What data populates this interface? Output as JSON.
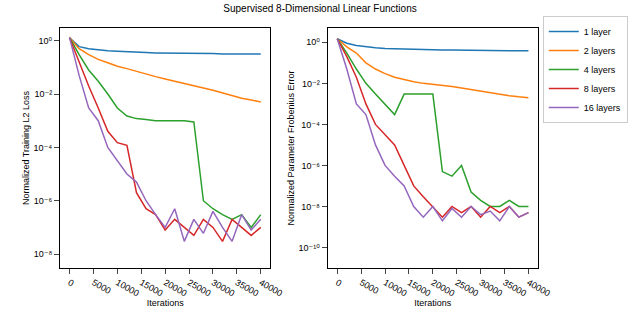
{
  "chart_data": [
    {
      "type": "line",
      "title": "Supervised 8-Dimensional Linear Functions",
      "x_label": "Iterations",
      "y_label": "Normalized Training L2 Loss",
      "log": "y",
      "grid": false,
      "x": [
        0,
        2000,
        4000,
        6000,
        8000,
        10000,
        12000,
        14000,
        16000,
        18000,
        20000,
        22000,
        24000,
        26000,
        28000,
        30000,
        32000,
        34000,
        36000,
        38000,
        40000
      ],
      "xlim": [
        -2000,
        42000
      ],
      "xticks": [
        0,
        5000,
        10000,
        15000,
        20000,
        25000,
        30000,
        35000,
        40000
      ],
      "ylim": [
        3e-09,
        3
      ],
      "yticks": [
        {
          "value": 1,
          "label": "10⁰"
        },
        {
          "value": 0.01,
          "label": "10⁻²"
        },
        {
          "value": 0.0001,
          "label": "10⁻⁴"
        },
        {
          "value": 1e-06,
          "label": "10⁻⁶"
        },
        {
          "value": 1e-08,
          "label": "10⁻⁸"
        }
      ],
      "series": [
        {
          "name": "1 layer",
          "color": "#1f77b4",
          "values": [
            1.3,
            0.6,
            0.5,
            0.45,
            0.42,
            0.4,
            0.38,
            0.37,
            0.36,
            0.35,
            0.35,
            0.34,
            0.34,
            0.33,
            0.33,
            0.33,
            0.32,
            0.32,
            0.32,
            0.32,
            0.32
          ]
        },
        {
          "name": "2 layers",
          "color": "#ff7f0e",
          "values": [
            1.3,
            0.5,
            0.3,
            0.2,
            0.15,
            0.11,
            0.09,
            0.07,
            0.055,
            0.045,
            0.037,
            0.03,
            0.025,
            0.021,
            0.017,
            0.014,
            0.011,
            0.009,
            0.007,
            0.006,
            0.005
          ]
        },
        {
          "name": "4 layers",
          "color": "#2ca02c",
          "values": [
            1.3,
            0.3,
            0.08,
            0.03,
            0.01,
            0.003,
            0.0015,
            0.0012,
            0.0011,
            0.001,
            0.001,
            0.001,
            0.001,
            0.0009,
            1e-06,
            5e-07,
            3e-07,
            2e-07,
            3e-07,
            1e-07,
            3e-07
          ]
        },
        {
          "name": "8 layers",
          "color": "#d62728",
          "values": [
            1.3,
            0.15,
            0.02,
            0.003,
            0.0004,
            0.00015,
            0.00012,
            2e-06,
            5e-07,
            3e-07,
            8e-08,
            2e-07,
            1e-07,
            5e-08,
            2e-07,
            1e-07,
            3e-08,
            2e-07,
            1e-07,
            5e-08,
            1e-07
          ]
        },
        {
          "name": "16 layers",
          "color": "#9467bd",
          "values": [
            1.3,
            0.05,
            0.003,
            0.001,
            0.0001,
            3e-05,
            1e-05,
            5e-06,
            1e-06,
            3e-07,
            1e-07,
            5e-07,
            3e-08,
            2e-07,
            6e-08,
            4e-07,
            1e-07,
            3e-08,
            3e-07,
            8e-08,
            2e-07
          ]
        }
      ]
    },
    {
      "type": "line",
      "x_label": "Iterations",
      "y_label": "Normalized Parameter Frobenius Error",
      "log": "y",
      "grid": false,
      "legend": "upper right",
      "x": [
        0,
        2000,
        4000,
        6000,
        8000,
        10000,
        12000,
        14000,
        16000,
        18000,
        20000,
        22000,
        24000,
        26000,
        28000,
        30000,
        32000,
        34000,
        36000,
        38000,
        40000
      ],
      "xlim": [
        -2000,
        42000
      ],
      "xticks": [
        0,
        5000,
        10000,
        15000,
        20000,
        25000,
        30000,
        35000,
        40000
      ],
      "ylim": [
        1e-11,
        5
      ],
      "yticks": [
        {
          "value": 1,
          "label": "10⁰"
        },
        {
          "value": 0.01,
          "label": "10⁻²"
        },
        {
          "value": 0.0001,
          "label": "10⁻⁴"
        },
        {
          "value": 1e-06,
          "label": "10⁻⁶"
        },
        {
          "value": 1e-08,
          "label": "10⁻⁸"
        },
        {
          "value": 1e-10,
          "label": "10⁻¹⁰"
        }
      ],
      "series": [
        {
          "name": "1 layer",
          "color": "#1f77b4",
          "values": [
            1.5,
            0.9,
            0.7,
            0.6,
            0.55,
            0.5,
            0.48,
            0.46,
            0.45,
            0.44,
            0.43,
            0.42,
            0.42,
            0.41,
            0.41,
            0.4,
            0.4,
            0.4,
            0.39,
            0.39,
            0.39
          ]
        },
        {
          "name": "2 layers",
          "color": "#ff7f0e",
          "values": [
            1.5,
            0.6,
            0.3,
            0.1,
            0.05,
            0.03,
            0.02,
            0.015,
            0.012,
            0.01,
            0.009,
            0.008,
            0.007,
            0.006,
            0.005,
            0.004,
            0.0035,
            0.003,
            0.0025,
            0.0022,
            0.002
          ]
        },
        {
          "name": "4 layers",
          "color": "#2ca02c",
          "values": [
            1.5,
            0.3,
            0.05,
            0.01,
            0.003,
            0.001,
            0.0003,
            0.003,
            0.003,
            0.003,
            0.003,
            5e-07,
            3e-07,
            1e-06,
            5e-08,
            2e-08,
            1e-08,
            1e-08,
            2e-08,
            1e-08,
            1e-08
          ]
        },
        {
          "name": "8 layers",
          "color": "#d62728",
          "values": [
            1.5,
            0.2,
            0.02,
            0.001,
            0.0001,
            3e-05,
            1e-05,
            1e-06,
            1e-07,
            3e-08,
            1e-08,
            3e-09,
            1e-08,
            5e-09,
            1e-08,
            3e-09,
            1e-08,
            5e-09,
            1e-08,
            3e-09,
            5e-09
          ]
        },
        {
          "name": "16 layers",
          "color": "#9467bd",
          "values": [
            1.5,
            0.05,
            0.001,
            0.0003,
            1e-05,
            1e-06,
            3e-07,
            1e-07,
            1e-08,
            3e-09,
            1e-08,
            2e-09,
            8e-09,
            3e-09,
            1e-08,
            4e-09,
            6e-09,
            2e-09,
            1e-08,
            3e-09,
            5e-09
          ]
        }
      ]
    }
  ]
}
